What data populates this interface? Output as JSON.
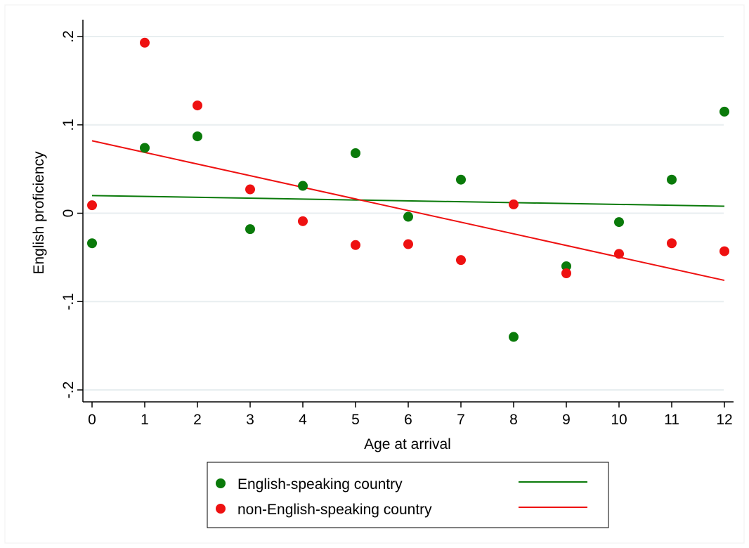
{
  "chart_data": {
    "type": "scatter",
    "xlabel": "Age at arrival",
    "ylabel": "English proficiency",
    "xlim": [
      0,
      12
    ],
    "ylim": [
      -0.2,
      0.2
    ],
    "x_ticks": [
      0,
      1,
      2,
      3,
      4,
      5,
      6,
      7,
      8,
      9,
      10,
      11,
      12
    ],
    "x_tick_labels": [
      "0",
      "1",
      "2",
      "3",
      "4",
      "5",
      "6",
      "7",
      "8",
      "9",
      "10",
      "11",
      "12"
    ],
    "y_ticks": [
      -0.2,
      -0.1,
      0,
      0.1,
      0.2
    ],
    "y_tick_labels": [
      "-.2",
      "-.1",
      "0",
      ".1",
      ".2"
    ],
    "grid": true,
    "legend_position": "bottom",
    "series": [
      {
        "name": "English-speaking country",
        "color": "#0a7a0a",
        "x": [
          0,
          1,
          2,
          3,
          4,
          5,
          6,
          7,
          8,
          9,
          10,
          11,
          12
        ],
        "y": [
          -0.034,
          0.074,
          0.087,
          -0.018,
          0.031,
          0.068,
          -0.004,
          0.038,
          -0.14,
          -0.06,
          -0.01,
          0.038,
          0.115
        ],
        "fit": [
          0.02,
          0.008
        ]
      },
      {
        "name": "non-English-speaking country",
        "color": "#ee1111",
        "x": [
          0,
          1,
          2,
          3,
          4,
          5,
          6,
          7,
          8,
          9,
          10,
          11,
          12
        ],
        "y": [
          0.009,
          0.193,
          0.122,
          0.027,
          -0.009,
          -0.036,
          -0.035,
          -0.053,
          0.01,
          -0.068,
          -0.046,
          -0.034,
          -0.043
        ],
        "fit": [
          0.082,
          -0.076
        ]
      }
    ]
  }
}
